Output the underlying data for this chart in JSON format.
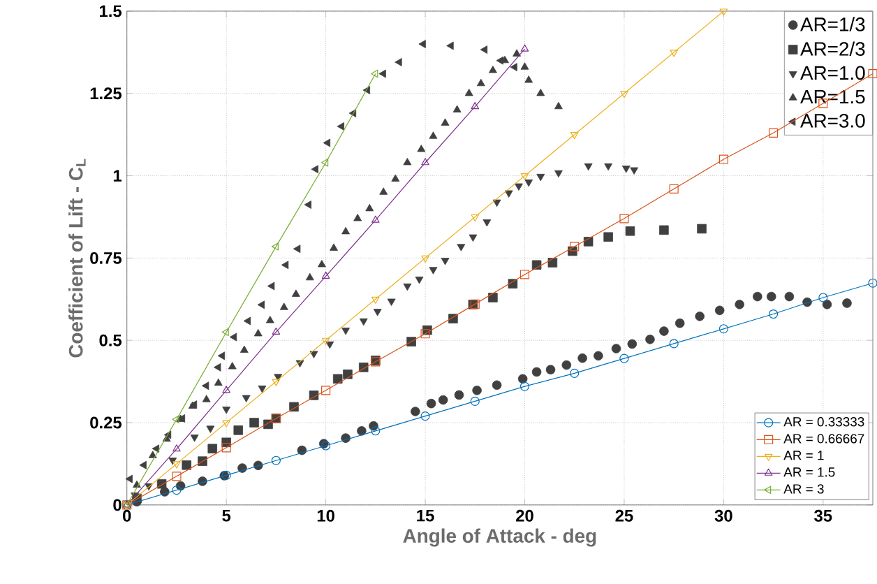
{
  "chart_data": {
    "type": "scatter",
    "xlabel": "Angle of Attack - deg",
    "ylabel": "Coefficient of Lift - C$_{L}$",
    "xlim": [
      0,
      37.5
    ],
    "ylim": [
      0,
      1.5
    ],
    "xticks": [
      0,
      5,
      10,
      15,
      20,
      25,
      30,
      35
    ],
    "yticks": [
      0,
      0.25,
      0.5,
      0.75,
      1,
      1.25,
      1.5
    ],
    "grid": true,
    "legend": "right",
    "series": [
      {
        "name": "AR=1/3",
        "marker": "circle",
        "color": "#404040",
        "x": [
          0.5,
          1.9,
          2.7,
          3.8,
          4.9,
          5.8,
          6.6,
          8.8,
          9.9,
          11.0,
          11.8,
          12.4,
          14.5,
          15.3,
          15.9,
          16.7,
          17.6,
          18.6,
          19.9,
          20.6,
          21.3,
          22.1,
          22.9,
          23.7,
          24.6,
          25.4,
          26.3,
          27.0,
          27.8,
          28.8,
          29.8,
          30.8,
          31.7,
          32.4,
          33.3,
          34.2,
          35.2,
          36.2
        ],
        "values": [
          0.01,
          0.04,
          0.058,
          0.072,
          0.089,
          0.112,
          0.12,
          0.166,
          0.186,
          0.203,
          0.225,
          0.24,
          0.284,
          0.308,
          0.319,
          0.334,
          0.348,
          0.364,
          0.383,
          0.404,
          0.411,
          0.425,
          0.446,
          0.453,
          0.475,
          0.489,
          0.503,
          0.528,
          0.552,
          0.573,
          0.591,
          0.609,
          0.633,
          0.633,
          0.633,
          0.616,
          0.609,
          0.613
        ]
      },
      {
        "name": "AR=2/3",
        "marker": "square",
        "color": "#404040",
        "x": [
          0.5,
          1.75,
          3.0,
          3.8,
          4.3,
          5.0,
          5.6,
          6.4,
          7.1,
          7.5,
          8.4,
          9.4,
          10.6,
          11.1,
          11.9,
          12.5,
          14.3,
          15.1,
          16.4,
          17.4,
          18.4,
          19.4,
          20.6,
          21.4,
          22.4,
          23.2,
          24.2,
          25.3,
          27.0,
          28.9
        ],
        "values": [
          0.02,
          0.064,
          0.121,
          0.133,
          0.171,
          0.19,
          0.227,
          0.25,
          0.245,
          0.263,
          0.298,
          0.333,
          0.383,
          0.397,
          0.418,
          0.439,
          0.496,
          0.531,
          0.566,
          0.609,
          0.63,
          0.672,
          0.729,
          0.736,
          0.771,
          0.8,
          0.814,
          0.832,
          0.835,
          0.839
        ]
      },
      {
        "name": "AR=1.0",
        "marker": "triangle-down",
        "color": "#404040",
        "x": [
          0.4,
          1.1,
          2.3,
          3.4,
          4.2,
          5.0,
          6.0,
          6.8,
          7.6,
          8.7,
          9.4,
          10.2,
          11.0,
          11.9,
          12.6,
          13.3,
          14.1,
          14.7,
          15.4,
          16.0,
          16.8,
          17.4,
          18.1,
          18.6,
          19.2,
          19.7,
          20.2,
          20.8,
          21.7,
          23.2,
          24.2,
          25.1,
          25.5
        ],
        "values": [
          0.03,
          0.058,
          0.136,
          0.206,
          0.233,
          0.291,
          0.326,
          0.355,
          0.39,
          0.432,
          0.46,
          0.489,
          0.531,
          0.559,
          0.588,
          0.619,
          0.665,
          0.686,
          0.715,
          0.743,
          0.785,
          0.814,
          0.86,
          0.92,
          0.948,
          0.969,
          0.981,
          0.998,
          1.009,
          1.03,
          1.03,
          1.023,
          1.018
        ]
      },
      {
        "name": "AR=1.5",
        "marker": "triangle",
        "color": "#404040",
        "x": [
          0.5,
          1.3,
          2.0,
          2.7,
          3.3,
          4.0,
          4.6,
          5.3,
          5.9,
          6.6,
          7.2,
          7.9,
          8.5,
          9.2,
          9.8,
          10.4,
          11.0,
          11.6,
          12.2,
          12.9,
          13.5,
          14.1,
          14.8,
          15.4,
          16.0,
          16.6,
          17.2,
          17.8,
          18.4,
          19.0,
          19.6,
          20.0,
          20.2,
          20.8,
          21.7
        ],
        "values": [
          0.06,
          0.15,
          0.2,
          0.26,
          0.3,
          0.32,
          0.37,
          0.42,
          0.47,
          0.52,
          0.56,
          0.6,
          0.64,
          0.69,
          0.73,
          0.78,
          0.83,
          0.87,
          0.9,
          0.95,
          0.99,
          1.04,
          1.08,
          1.12,
          1.16,
          1.2,
          1.25,
          1.28,
          1.32,
          1.35,
          1.37,
          1.33,
          1.29,
          1.25,
          1.21
        ]
      },
      {
        "name": "AR=3.0",
        "marker": "triangle-left",
        "color": "#404040",
        "x": [
          0.16,
          0.86,
          1.5,
          2.1,
          2.8,
          3.4,
          4.0,
          4.6,
          4.8,
          5.4,
          6.1,
          6.8,
          7.3,
          8.0,
          8.6,
          9.15,
          9.5,
          10.1,
          10.8,
          11.4,
          12.1,
          12.9,
          13.7,
          14.9,
          16.3,
          18.0,
          18.8,
          19.5
        ],
        "values": [
          0.079,
          0.121,
          0.171,
          0.213,
          0.263,
          0.305,
          0.362,
          0.418,
          0.453,
          0.51,
          0.559,
          0.608,
          0.665,
          0.729,
          0.778,
          0.912,
          1.02,
          1.1,
          1.15,
          1.19,
          1.26,
          1.31,
          1.345,
          1.4,
          1.395,
          1.383,
          1.35,
          1.33
        ]
      },
      {
        "name": "AR = 0.33333",
        "type": "line",
        "marker": "circle",
        "color": "#0072bd",
        "x": [
          0,
          2.5,
          5,
          7.5,
          10,
          12.5,
          15,
          17.5,
          20,
          22.5,
          25,
          27.5,
          30,
          32.5,
          35,
          37.5
        ],
        "values": [
          0,
          0.045,
          0.09,
          0.135,
          0.18,
          0.225,
          0.27,
          0.315,
          0.36,
          0.4,
          0.445,
          0.49,
          0.535,
          0.58,
          0.63,
          0.674
        ]
      },
      {
        "name": "AR = 0.66667",
        "type": "line",
        "marker": "square",
        "color": "#d95319",
        "x": [
          0,
          2.5,
          5,
          7.5,
          10,
          12.5,
          15,
          17.5,
          20,
          22.5,
          25,
          27.5,
          30,
          32.5,
          35,
          37.5
        ],
        "values": [
          0,
          0.087,
          0.174,
          0.263,
          0.348,
          0.435,
          0.52,
          0.61,
          0.7,
          0.785,
          0.87,
          0.96,
          1.05,
          1.13,
          1.22,
          1.31
        ]
      },
      {
        "name": "AR = 1",
        "type": "line",
        "marker": "triangle-down",
        "color": "#edb120",
        "x": [
          0,
          2.5,
          5,
          7.5,
          10,
          12.5,
          15,
          17.5,
          20,
          22.5,
          25,
          27.5,
          30
        ],
        "values": [
          0,
          0.125,
          0.25,
          0.375,
          0.5,
          0.625,
          0.75,
          0.875,
          1.0,
          1.125,
          1.25,
          1.375,
          1.5
        ]
      },
      {
        "name": "AR = 1.5",
        "type": "line",
        "marker": "triangle",
        "color": "#7e2f8e",
        "x": [
          0,
          2.5,
          5,
          7.5,
          10,
          12.5,
          15,
          17.5,
          20
        ],
        "values": [
          0,
          0.17,
          0.348,
          0.525,
          0.695,
          0.865,
          1.04,
          1.21,
          1.385
        ]
      },
      {
        "name": "AR = 3",
        "type": "line",
        "marker": "triangle-left",
        "color": "#77ac30",
        "x": [
          0,
          2.5,
          5,
          7.5,
          10,
          12.5
        ],
        "values": [
          0,
          0.26,
          0.525,
          0.785,
          1.04,
          1.31
        ]
      }
    ]
  }
}
